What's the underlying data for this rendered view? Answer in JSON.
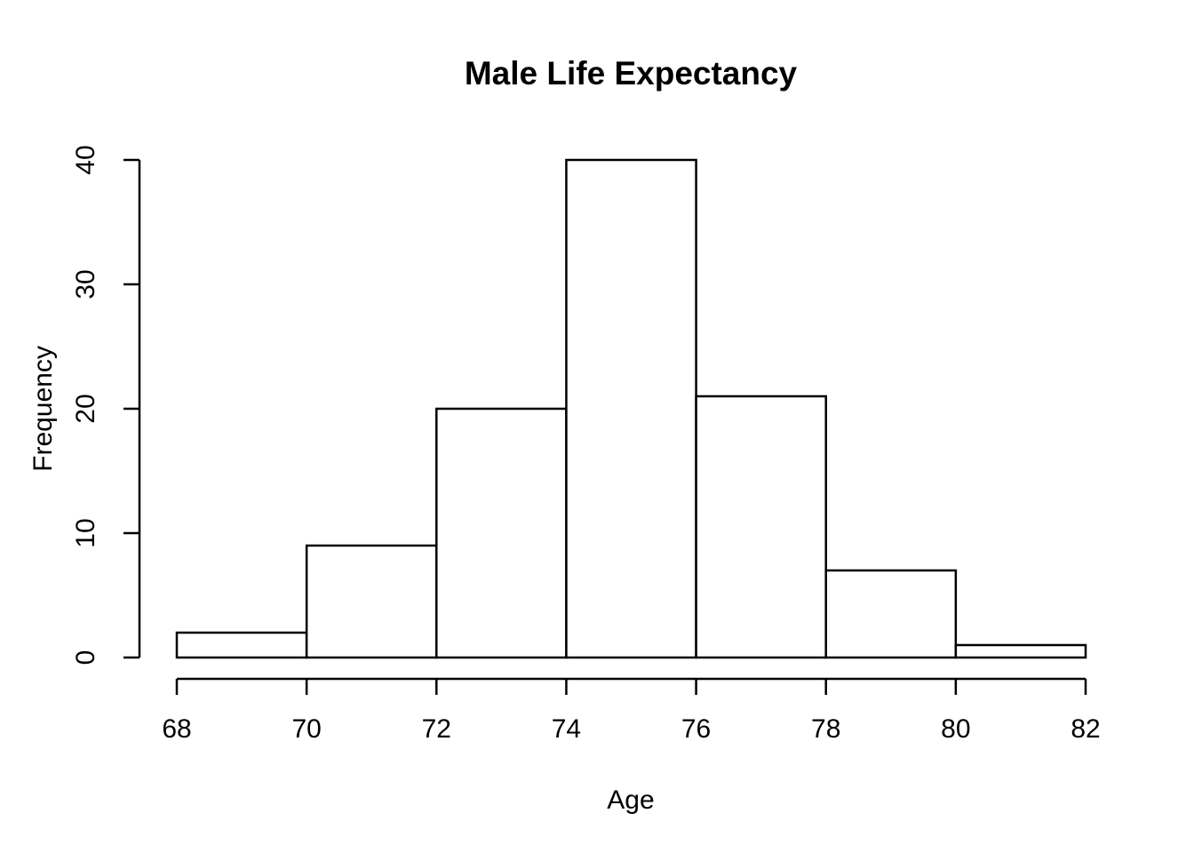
{
  "chart_data": {
    "type": "bar",
    "subtype": "histogram",
    "title": "Male Life Expectancy",
    "xlabel": "Age",
    "ylabel": "Frequency",
    "bin_edges": [
      68,
      70,
      72,
      74,
      76,
      78,
      80,
      82
    ],
    "counts": [
      2,
      9,
      20,
      40,
      21,
      7,
      1
    ],
    "x_ticks": [
      68,
      70,
      72,
      74,
      76,
      78,
      80,
      82
    ],
    "y_ticks": [
      0,
      10,
      20,
      30,
      40
    ],
    "xlim": [
      68,
      82
    ],
    "ylim": [
      0,
      40
    ],
    "grid": false,
    "legend_position": "none",
    "colors": {
      "bar_fill": "#ffffff",
      "bar_stroke": "#000000",
      "axis": "#000000",
      "text": "#000000",
      "background": "#ffffff"
    }
  }
}
